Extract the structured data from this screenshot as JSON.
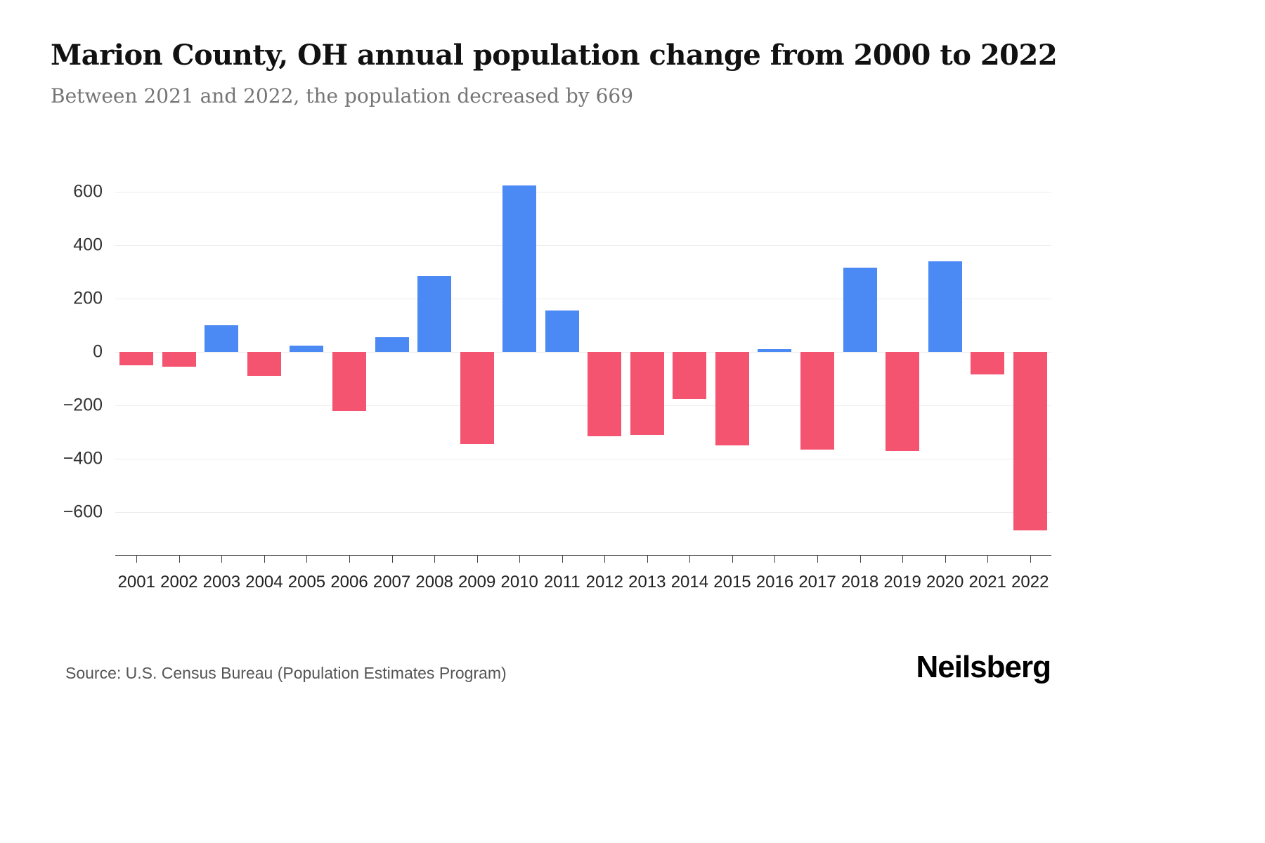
{
  "header": {
    "title": "Marion County, OH annual population change from 2000 to 2022",
    "subtitle": "Between 2021 and 2022, the population decreased by 669"
  },
  "chart_data": {
    "type": "bar",
    "title": "Marion County, OH annual population change from 2000 to 2022",
    "xlabel": "",
    "ylabel": "",
    "categories": [
      "2001",
      "2002",
      "2003",
      "2004",
      "2005",
      "2006",
      "2007",
      "2008",
      "2009",
      "2010",
      "2011",
      "2012",
      "2013",
      "2014",
      "2015",
      "2016",
      "2017",
      "2018",
      "2019",
      "2020",
      "2021",
      "2022"
    ],
    "values": [
      -50,
      -55,
      100,
      -90,
      25,
      -220,
      55,
      285,
      -345,
      625,
      155,
      -315,
      -310,
      -175,
      -350,
      10,
      -365,
      315,
      -370,
      340,
      -85,
      -669
    ],
    "yticks": [
      600,
      400,
      200,
      0,
      -200,
      -400,
      -600
    ],
    "ylim": [
      -760,
      700
    ],
    "grid": true,
    "legend": false,
    "colors": {
      "positive": "#4b89f4",
      "negative": "#f4546f"
    }
  },
  "footer": {
    "source": "Source: U.S. Census Bureau (Population Estimates Program)",
    "brand": "Neilsberg"
  }
}
